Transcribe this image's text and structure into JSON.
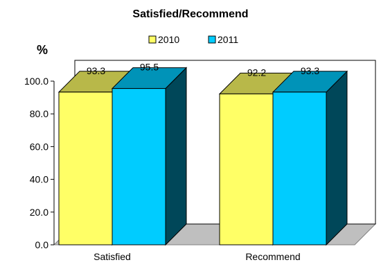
{
  "chart_data": {
    "type": "bar",
    "title": "Satisfied/Recommend",
    "ylabel": "%",
    "xlabel": "",
    "categories": [
      "Satisfied",
      "Recommend"
    ],
    "series": [
      {
        "name": "2010",
        "values": [
          93.3,
          92.2
        ],
        "value_labels": [
          "93.3",
          "92.2"
        ],
        "color": "#FFFF66"
      },
      {
        "name": "2011",
        "values": [
          95.5,
          93.3
        ],
        "value_labels": [
          "95.5",
          "93.3"
        ],
        "color": "#00CCFF"
      }
    ],
    "ylim": [
      0,
      100
    ],
    "yticks": [
      "0.0",
      "20.0",
      "40.0",
      "60.0",
      "80.0",
      "100.0"
    ],
    "grid": false,
    "legend_position": "top",
    "style": "3d-bar"
  }
}
